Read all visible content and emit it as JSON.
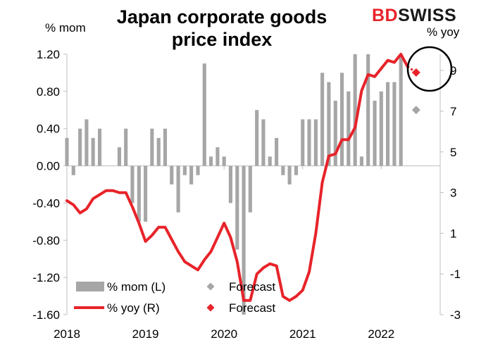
{
  "title": "Japan corporate goods price index",
  "left_unit": "% mom",
  "right_unit": "% yoy",
  "logo": {
    "part1": "BD",
    "part2": "SWISS"
  },
  "colors": {
    "bars": "#a6a6a6",
    "line": "#e8232a",
    "forecast_mom": "#a6a6a6",
    "forecast_yoy": "#e8232a"
  },
  "chart_data": {
    "type": "bar+line",
    "x_labels": [
      "2018",
      "2019",
      "2020",
      "2021",
      "2022"
    ],
    "x_range": [
      2018.0,
      2022.75
    ],
    "left_axis": {
      "ticks": [
        1.2,
        0.8,
        0.4,
        0.0,
        -0.4,
        -0.8,
        -1.2,
        -1.6
      ],
      "tick_labels": [
        "1.20",
        "0.80",
        "0.40",
        "0.00",
        "-0.40",
        "-0.80",
        "-1.20",
        "-1.60"
      ],
      "range": [
        -1.6,
        1.2
      ]
    },
    "right_axis": {
      "ticks": [
        9,
        7,
        5,
        3,
        1,
        -1,
        -3
      ],
      "tick_labels": [
        "9",
        "7",
        "5",
        "3",
        "1",
        "-1",
        "-3"
      ],
      "range": [
        -3,
        9.8
      ]
    },
    "series": [
      {
        "name": "% mom (L)",
        "type": "bar",
        "x": [
          2018.0,
          2018.083,
          2018.167,
          2018.25,
          2018.333,
          2018.417,
          2018.5,
          2018.583,
          2018.667,
          2018.75,
          2018.833,
          2018.917,
          2019.0,
          2019.083,
          2019.167,
          2019.25,
          2019.333,
          2019.417,
          2019.5,
          2019.583,
          2019.667,
          2019.75,
          2019.833,
          2019.917,
          2020.0,
          2020.083,
          2020.167,
          2020.25,
          2020.333,
          2020.417,
          2020.5,
          2020.583,
          2020.667,
          2020.75,
          2020.833,
          2020.917,
          2021.0,
          2021.083,
          2021.167,
          2021.25,
          2021.333,
          2021.417,
          2021.5,
          2021.583,
          2021.667,
          2021.75,
          2021.833,
          2021.917,
          2022.0,
          2022.083,
          2022.167,
          2022.25
        ],
        "values": [
          0.3,
          -0.1,
          0.4,
          0.5,
          0.3,
          0.4,
          0.0,
          0.0,
          0.2,
          0.4,
          -0.4,
          -0.6,
          -0.6,
          0.4,
          0.3,
          0.4,
          -0.2,
          -0.5,
          -0.1,
          -0.2,
          -0.1,
          1.1,
          0.1,
          0.2,
          0.1,
          -0.4,
          -0.9,
          -1.6,
          -0.5,
          0.6,
          0.5,
          0.1,
          0.3,
          -0.1,
          -0.2,
          -0.1,
          0.5,
          0.5,
          0.5,
          1.0,
          0.9,
          0.7,
          1.0,
          0.8,
          1.2,
          0.1,
          1.2,
          0.7,
          0.8,
          0.9,
          0.9,
          1.2
        ]
      },
      {
        "name": "% yoy (R)",
        "type": "line",
        "x": [
          2018.0,
          2018.083,
          2018.167,
          2018.25,
          2018.333,
          2018.417,
          2018.5,
          2018.583,
          2018.667,
          2018.75,
          2018.833,
          2018.917,
          2019.0,
          2019.083,
          2019.167,
          2019.25,
          2019.333,
          2019.417,
          2019.5,
          2019.583,
          2019.667,
          2019.75,
          2019.833,
          2019.917,
          2020.0,
          2020.083,
          2020.167,
          2020.25,
          2020.333,
          2020.417,
          2020.5,
          2020.583,
          2020.667,
          2020.75,
          2020.833,
          2020.917,
          2021.0,
          2021.083,
          2021.167,
          2021.25,
          2021.333,
          2021.417,
          2021.5,
          2021.583,
          2021.667,
          2021.75,
          2021.833,
          2021.917,
          2022.0,
          2022.083,
          2022.167,
          2022.25,
          2022.333
        ],
        "values": [
          2.6,
          2.4,
          2.0,
          2.2,
          2.7,
          2.9,
          3.1,
          3.1,
          3.0,
          3.0,
          2.3,
          1.5,
          0.6,
          0.9,
          1.3,
          1.3,
          0.7,
          0.1,
          -0.4,
          -0.6,
          -0.8,
          -0.3,
          0.1,
          0.8,
          1.5,
          0.8,
          -0.4,
          -2.3,
          -2.3,
          -1.0,
          -0.7,
          -0.5,
          -0.6,
          -2.1,
          -2.3,
          -2.1,
          -1.8,
          -0.9,
          1.0,
          3.5,
          4.8,
          4.9,
          5.6,
          5.6,
          6.2,
          8.0,
          8.8,
          8.7,
          9.1,
          9.5,
          9.4,
          9.8,
          9.2
        ]
      },
      {
        "name": "Forecast",
        "type": "marker",
        "axis": "left",
        "x": [
          2022.417
        ],
        "values": [
          0.6
        ]
      },
      {
        "name": "Forecast",
        "type": "marker",
        "axis": "right",
        "x": [
          2022.417
        ],
        "values": [
          8.9
        ]
      }
    ],
    "legend": {
      "placement": "bottom-left",
      "entries": [
        "% mom (L)",
        "Forecast",
        "% yoy (R)",
        "Forecast"
      ]
    },
    "annotations": [
      "circle highlighting latest data and forecast"
    ],
    "grid": false
  }
}
